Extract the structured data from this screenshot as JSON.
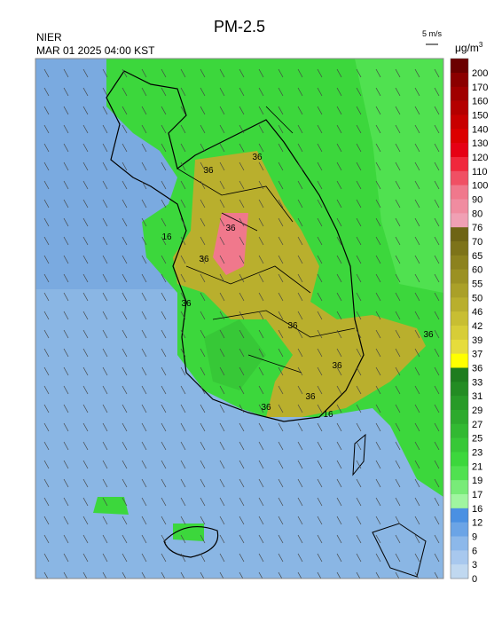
{
  "header": {
    "title": "PM-2.5",
    "source": "NIER",
    "datetime": "MAR 01 2025 04:00 KST",
    "wind_scale": "5 m/s",
    "unit": "μg/m",
    "unit_sup": "3"
  },
  "map": {
    "contour_labels": [
      "36",
      "36",
      "36",
      "36",
      "16",
      "36",
      "36",
      "36",
      "36",
      "36",
      "16",
      "36"
    ]
  },
  "legend": {
    "labels": [
      200,
      170,
      160,
      150,
      140,
      130,
      120,
      110,
      100,
      90,
      80,
      76,
      70,
      65,
      60,
      55,
      50,
      46,
      42,
      39,
      37,
      36,
      33,
      31,
      29,
      27,
      25,
      23,
      21,
      19,
      17,
      16,
      12,
      9,
      6,
      3,
      0
    ],
    "colors": [
      "#6b0000",
      "#8b0000",
      "#a00000",
      "#b40000",
      "#c80000",
      "#dc0000",
      "#e60014",
      "#f0283c",
      "#f05064",
      "#f0788c",
      "#f08ca0",
      "#f0a0b4",
      "#6e6414",
      "#7d7319",
      "#8c821e",
      "#9b9123",
      "#aaa028",
      "#b9af2d",
      "#c8be32",
      "#d7cd37",
      "#e6dc3c",
      "#ffff00",
      "#1e7d1e",
      "#238c23",
      "#289b28",
      "#2daa2d",
      "#32b932",
      "#37c837",
      "#3cd73c",
      "#50e150",
      "#78eb78",
      "#a0f5a0",
      "#4a90e2",
      "#6ba4e6",
      "#8cb8ea",
      "#a8c8ee",
      "#c0d8f0"
    ]
  }
}
